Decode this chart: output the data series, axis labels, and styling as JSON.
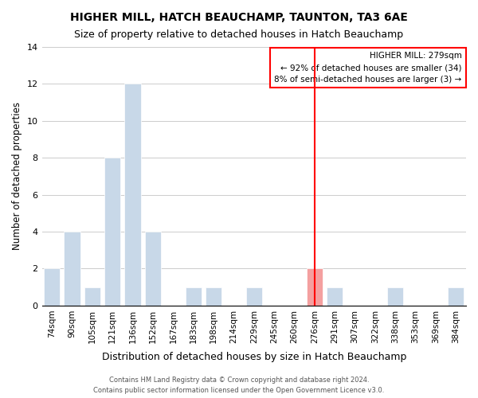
{
  "title": "HIGHER MILL, HATCH BEAUCHAMP, TAUNTON, TA3 6AE",
  "subtitle": "Size of property relative to detached houses in Hatch Beauchamp",
  "xlabel": "Distribution of detached houses by size in Hatch Beauchamp",
  "ylabel": "Number of detached properties",
  "bar_labels": [
    "74sqm",
    "90sqm",
    "105sqm",
    "121sqm",
    "136sqm",
    "152sqm",
    "167sqm",
    "183sqm",
    "198sqm",
    "214sqm",
    "229sqm",
    "245sqm",
    "260sqm",
    "276sqm",
    "291sqm",
    "307sqm",
    "322sqm",
    "338sqm",
    "353sqm",
    "369sqm",
    "384sqm"
  ],
  "bar_values": [
    2,
    4,
    1,
    8,
    12,
    4,
    0,
    1,
    1,
    0,
    1,
    0,
    0,
    2,
    1,
    0,
    0,
    1,
    0,
    0,
    1
  ],
  "highlight_index": 13,
  "highlight_color": "#f4a0a0",
  "normal_color": "#c8d8e8",
  "annotation_title": "HIGHER MILL: 279sqm",
  "annotation_line1": "← 92% of detached houses are smaller (34)",
  "annotation_line2": "8% of semi-detached houses are larger (3) →",
  "ylim": [
    0,
    14
  ],
  "yticks": [
    0,
    2,
    4,
    6,
    8,
    10,
    12,
    14
  ],
  "footer1": "Contains HM Land Registry data © Crown copyright and database right 2024.",
  "footer2": "Contains public sector information licensed under the Open Government Licence v3.0."
}
